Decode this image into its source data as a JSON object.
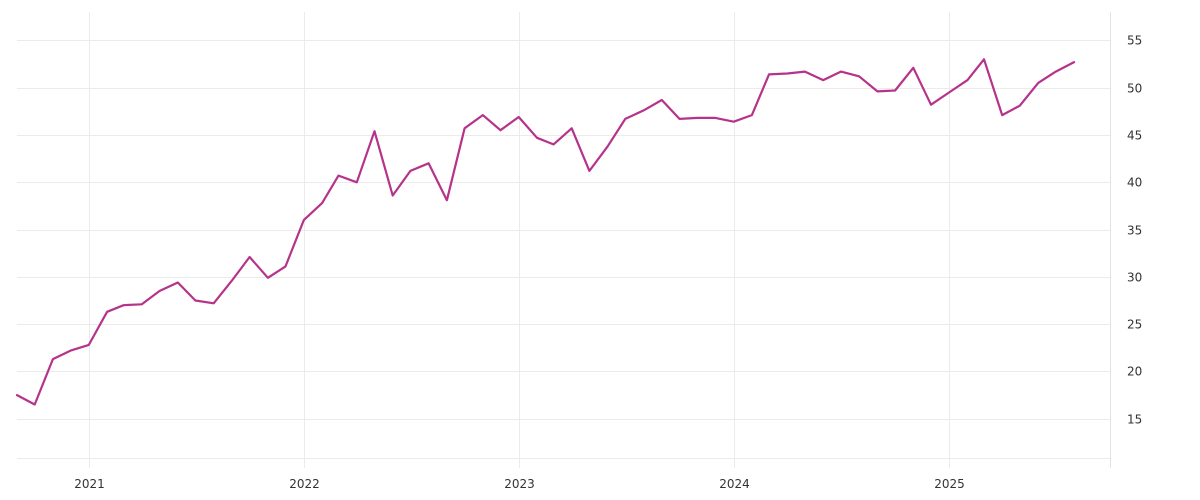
{
  "chart_data": {
    "type": "line",
    "title": "",
    "xlabel": "",
    "ylabel": "",
    "grid": true,
    "y_axis_side": "right",
    "x_ticks": [
      "2021",
      "2022",
      "2023",
      "2024",
      "2025"
    ],
    "x_tick_dates": [
      "2021-01-01",
      "2022-01-01",
      "2023-01-01",
      "2024-01-01",
      "2025-01-01"
    ],
    "y_ticks": [
      15,
      20,
      25,
      30,
      35,
      40,
      45,
      50,
      55
    ],
    "xlim": [
      "2020-09-01",
      "2025-10-01"
    ],
    "ylim": [
      10,
      58
    ],
    "series": [
      {
        "color": "#b5338a",
        "x": [
          "2020-09-01",
          "2020-10-01",
          "2020-11-01",
          "2020-12-01",
          "2021-01-01",
          "2021-02-01",
          "2021-03-01",
          "2021-04-01",
          "2021-05-01",
          "2021-06-01",
          "2021-07-01",
          "2021-08-01",
          "2021-09-01",
          "2021-10-01",
          "2021-11-01",
          "2021-12-01",
          "2022-01-01",
          "2022-02-01",
          "2022-03-01",
          "2022-04-01",
          "2022-05-01",
          "2022-06-01",
          "2022-07-01",
          "2022-08-01",
          "2022-09-01",
          "2022-10-01",
          "2022-11-01",
          "2022-12-01",
          "2023-01-01",
          "2023-02-01",
          "2023-03-01",
          "2023-04-01",
          "2023-05-01",
          "2023-06-01",
          "2023-07-01",
          "2023-08-01",
          "2023-09-01",
          "2023-10-01",
          "2023-11-01",
          "2023-12-01",
          "2024-01-01",
          "2024-02-01",
          "2024-03-01",
          "2024-04-01",
          "2024-05-01",
          "2024-06-01",
          "2024-07-01",
          "2024-08-01",
          "2024-09-01",
          "2024-10-01",
          "2024-11-01",
          "2024-12-01",
          "2025-01-01",
          "2025-02-01",
          "2025-03-01",
          "2025-04-01",
          "2025-05-01",
          "2025-06-01",
          "2025-07-01",
          "2025-08-01"
        ],
        "y": [
          17.5,
          16.5,
          21.3,
          22.2,
          22.8,
          26.3,
          27.0,
          27.1,
          28.5,
          29.4,
          27.5,
          27.2,
          29.6,
          32.1,
          29.9,
          31.1,
          36.0,
          37.8,
          40.7,
          40.0,
          45.4,
          38.6,
          41.2,
          42.0,
          38.1,
          45.7,
          47.1,
          45.5,
          46.9,
          44.7,
          44.0,
          45.7,
          41.2,
          43.8,
          46.7,
          47.6,
          48.7,
          46.7,
          46.8,
          46.8,
          46.4,
          47.1,
          51.4,
          51.5,
          51.7,
          50.8,
          51.7,
          51.2,
          49.6,
          49.7,
          52.1,
          48.2,
          49.5,
          50.8,
          53.0,
          47.1,
          48.1,
          50.5,
          51.7,
          52.7
        ]
      }
    ]
  }
}
